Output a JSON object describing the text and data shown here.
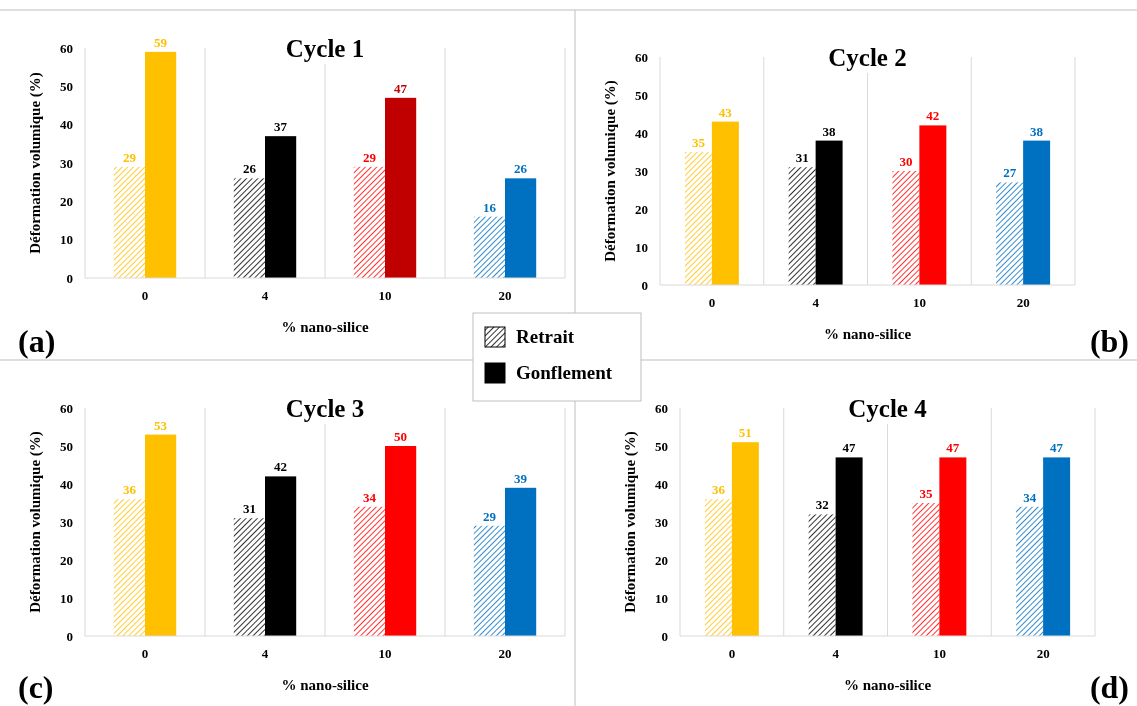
{
  "chart_data": [
    {
      "type": "bar",
      "title": "Cycle 1",
      "xlabel": "% nano-silice",
      "ylabel": "Déformation volumique (%)",
      "categories": [
        "0",
        "4",
        "10",
        "20"
      ],
      "ylim": [
        0,
        60
      ],
      "yticks": [
        0,
        10,
        20,
        30,
        40,
        50,
        60
      ],
      "grid": "x",
      "data_labels": true,
      "legend": "bottom right",
      "annotations": [
        "(a)"
      ],
      "series": [
        {
          "name": "Retrait",
          "color": "#000000",
          "colors": [
            "#ffc000",
            "#000000",
            "#ff0000",
            "#0070c0"
          ],
          "values": [
            29,
            26,
            29,
            16
          ]
        },
        {
          "name": "Gonflement",
          "color": "#000000",
          "colors": [
            "#ffc000",
            "#000000",
            "#c00000",
            "#0070c0"
          ],
          "values": [
            59,
            37,
            47,
            26
          ]
        }
      ]
    },
    {
      "type": "bar",
      "title": "Cycle 2",
      "xlabel": "% nano-silice",
      "ylabel": "Déformation volumique (%)",
      "categories": [
        "0",
        "4",
        "10",
        "20"
      ],
      "ylim": [
        0,
        60
      ],
      "yticks": [
        0,
        10,
        20,
        30,
        40,
        50,
        60
      ],
      "grid": "x",
      "data_labels": true,
      "annotations": [
        "(b)"
      ],
      "series": [
        {
          "colors": [
            "#ffc000",
            "#000000",
            "#ff0000",
            "#0070c0"
          ],
          "values": [
            35,
            31,
            30,
            27
          ]
        },
        {
          "colors": [
            "#ffc000",
            "#000000",
            "#ff0000",
            "#0070c0"
          ],
          "values": [
            43,
            38,
            42,
            38
          ]
        }
      ]
    },
    {
      "type": "bar",
      "title": "Cycle 3",
      "xlabel": "% nano-silice",
      "ylabel": "Déformation volumique (%)",
      "categories": [
        "0",
        "4",
        "10",
        "20"
      ],
      "ylim": [
        0,
        60
      ],
      "yticks": [
        0,
        10,
        20,
        30,
        40,
        50,
        60
      ],
      "grid": "x",
      "data_labels": true,
      "annotations": [
        "(c)"
      ],
      "series": [
        {
          "colors": [
            "#ffc000",
            "#000000",
            "#ff0000",
            "#0070c0"
          ],
          "values": [
            36,
            31,
            34,
            29
          ]
        },
        {
          "colors": [
            "#ffc000",
            "#000000",
            "#ff0000",
            "#0070c0"
          ],
          "values": [
            53,
            42,
            50,
            39
          ]
        }
      ]
    },
    {
      "type": "bar",
      "title": "Cycle 4",
      "xlabel": "% nano-silice",
      "ylabel": "Déformation volumique (%)",
      "categories": [
        "0",
        "4",
        "10",
        "20"
      ],
      "ylim": [
        0,
        60
      ],
      "yticks": [
        0,
        10,
        20,
        30,
        40,
        50,
        60
      ],
      "grid": "x",
      "data_labels": true,
      "annotations": [
        "(d)"
      ],
      "series": [
        {
          "colors": [
            "#ffc000",
            "#000000",
            "#ff0000",
            "#0070c0"
          ],
          "values": [
            36,
            32,
            35,
            34
          ]
        },
        {
          "colors": [
            "#ffc000",
            "#000000",
            "#ff0000",
            "#0070c0"
          ],
          "values": [
            51,
            47,
            47,
            47
          ]
        }
      ]
    }
  ]
}
